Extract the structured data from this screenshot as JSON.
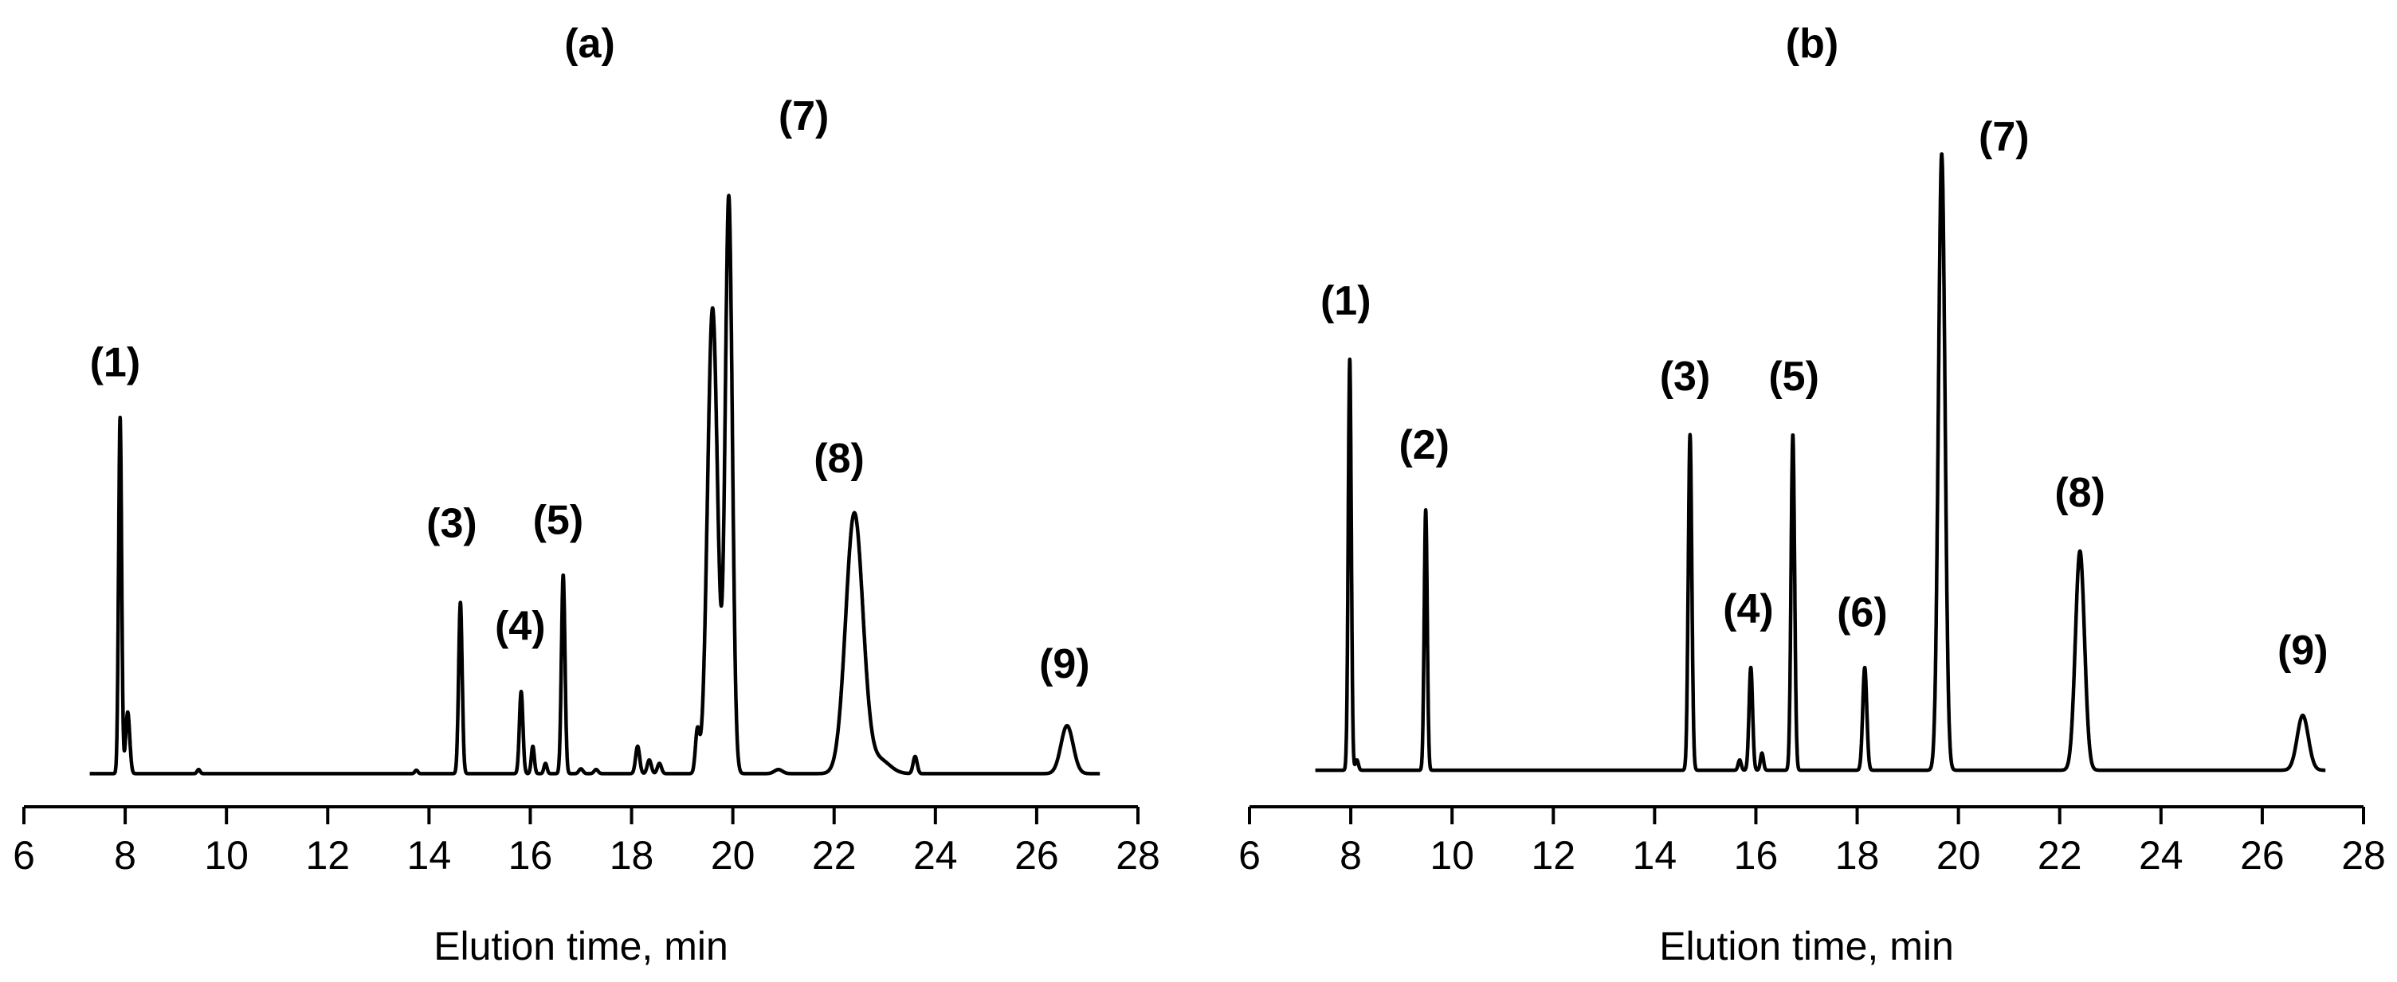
{
  "chart_data": [
    {
      "type": "line",
      "title": "(a)",
      "xlabel": "Elution time, min",
      "ylabel": "",
      "xlim": [
        6,
        28
      ],
      "ylim": [
        0,
        100
      ],
      "xticks": [
        "6",
        "8",
        "10",
        "12",
        "14",
        "16",
        "18",
        "20",
        "22",
        "24",
        "26",
        "28"
      ],
      "grid": false,
      "baseline": 1,
      "peaks": [
        {
          "label": "(1)",
          "t": 7.9,
          "h": 52,
          "w": 0.03
        },
        {
          "label": "",
          "t": 8.05,
          "h": 9,
          "w": 0.04
        },
        {
          "label": "",
          "t": 9.45,
          "h": 0.6,
          "w": 0.03
        },
        {
          "label": "",
          "t": 13.75,
          "h": 0.5,
          "w": 0.03
        },
        {
          "label": "(3)",
          "t": 14.62,
          "h": 25,
          "w": 0.035
        },
        {
          "label": "(4)",
          "t": 15.82,
          "h": 12,
          "w": 0.035
        },
        {
          "label": "",
          "t": 16.05,
          "h": 4,
          "w": 0.03
        },
        {
          "label": "",
          "t": 16.3,
          "h": 1.5,
          "w": 0.03
        },
        {
          "label": "(5)",
          "t": 16.65,
          "h": 29,
          "w": 0.035
        },
        {
          "label": "",
          "t": 17.0,
          "h": 0.7,
          "w": 0.04
        },
        {
          "label": "",
          "t": 17.3,
          "h": 0.6,
          "w": 0.04
        },
        {
          "label": "",
          "t": 18.12,
          "h": 4,
          "w": 0.04
        },
        {
          "label": "",
          "t": 18.35,
          "h": 2,
          "w": 0.04
        },
        {
          "label": "",
          "t": 18.55,
          "h": 1.5,
          "w": 0.04
        },
        {
          "label": "",
          "t": 19.3,
          "h": 6,
          "w": 0.04
        },
        {
          "label": "",
          "t": 19.6,
          "h": 68,
          "w": 0.1
        },
        {
          "label": "(7)",
          "t": 19.92,
          "h": 84,
          "w": 0.07
        },
        {
          "label": "",
          "t": 20.9,
          "h": 0.6,
          "w": 0.08
        },
        {
          "label": "(8)",
          "t": 22.4,
          "h": 38,
          "w": 0.17
        },
        {
          "label": "",
          "t": 22.9,
          "h": 2,
          "w": 0.2
        },
        {
          "label": "",
          "t": 23.6,
          "h": 2.5,
          "w": 0.04
        },
        {
          "label": "(9)",
          "t": 26.6,
          "h": 7,
          "w": 0.12
        }
      ],
      "labels": [
        {
          "text": "(1)",
          "x": 7.8,
          "y": 59
        },
        {
          "text": "(3)",
          "x": 14.45,
          "y": 35.5
        },
        {
          "text": "(4)",
          "x": 15.8,
          "y": 20.5
        },
        {
          "text": "(5)",
          "x": 16.55,
          "y": 36
        },
        {
          "text": "(7)",
          "x": 21.4,
          "y": 95
        },
        {
          "text": "(8)",
          "x": 22.1,
          "y": 45
        },
        {
          "text": "(9)",
          "x": 26.55,
          "y": 15
        }
      ],
      "title_x": 20.8
    },
    {
      "type": "line",
      "title": "(b)",
      "xlabel": "Elution time, min",
      "ylabel": "",
      "xlim": [
        6,
        28
      ],
      "ylim": [
        0,
        100
      ],
      "xticks": [
        "6",
        "8",
        "10",
        "12",
        "14",
        "16",
        "18",
        "20",
        "22",
        "24",
        "26",
        "28"
      ],
      "grid": false,
      "baseline": 1.5,
      "peaks": [
        {
          "label": "(1)",
          "t": 7.98,
          "h": 60,
          "w": 0.03
        },
        {
          "label": "",
          "t": 8.12,
          "h": 1.5,
          "w": 0.03
        },
        {
          "label": "(2)",
          "t": 9.48,
          "h": 38,
          "w": 0.03
        },
        {
          "label": "(3)",
          "t": 14.7,
          "h": 49,
          "w": 0.035
        },
        {
          "label": "",
          "t": 15.68,
          "h": 1.5,
          "w": 0.03
        },
        {
          "label": "(4)",
          "t": 15.9,
          "h": 15,
          "w": 0.035
        },
        {
          "label": "",
          "t": 16.12,
          "h": 2.5,
          "w": 0.03
        },
        {
          "label": "(5)",
          "t": 16.73,
          "h": 49,
          "w": 0.035
        },
        {
          "label": "(6)",
          "t": 18.15,
          "h": 15,
          "w": 0.04
        },
        {
          "label": "(7)",
          "t": 19.67,
          "h": 90,
          "w": 0.065
        },
        {
          "label": "(8)",
          "t": 22.4,
          "h": 32,
          "w": 0.09
        },
        {
          "label": "(9)",
          "t": 26.8,
          "h": 8,
          "w": 0.11
        }
      ],
      "labels": [
        {
          "text": "(1)",
          "x": 7.9,
          "y": 68
        },
        {
          "text": "(2)",
          "x": 9.45,
          "y": 47
        },
        {
          "text": "(3)",
          "x": 14.6,
          "y": 57
        },
        {
          "text": "(4)",
          "x": 15.85,
          "y": 23
        },
        {
          "text": "(5)",
          "x": 16.75,
          "y": 57
        },
        {
          "text": "(6)",
          "x": 18.1,
          "y": 22.5
        },
        {
          "text": "(7)",
          "x": 20.9,
          "y": 92
        },
        {
          "text": "(8)",
          "x": 22.4,
          "y": 40
        },
        {
          "text": "(9)",
          "x": 26.8,
          "y": 17
        }
      ],
      "title_x": 20.8
    }
  ]
}
